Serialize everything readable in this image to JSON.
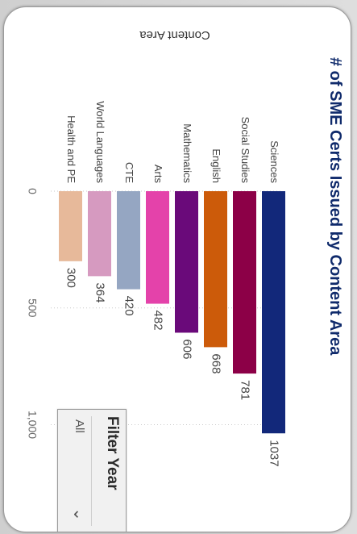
{
  "chart_data": {
    "type": "bar",
    "title": "# of SME Certs Issued by Content Area",
    "category_axis_title": "Content Area",
    "categories": [
      "Sciences",
      "Social Studies",
      "English",
      "Mathematics",
      "Arts",
      "CTE",
      "World Languages",
      "Health and PE"
    ],
    "values": [
      1037,
      781,
      668,
      606,
      482,
      420,
      364,
      300
    ],
    "colors": [
      "#12287a",
      "#8c0047",
      "#cc5b0a",
      "#6a0a7a",
      "#e442aa",
      "#95a6c2",
      "#d69ac0",
      "#e7b99a"
    ],
    "value_ticks": [
      "0",
      "500",
      "1,000"
    ],
    "value_tick_values": [
      0,
      500,
      1000
    ],
    "xlim": [
      0,
      1100
    ],
    "grid": true,
    "orientation": "rotated 90° clockwise"
  },
  "filter": {
    "title": "Filter Year",
    "value": "All",
    "chevron_icon": "chevron-down-icon"
  }
}
